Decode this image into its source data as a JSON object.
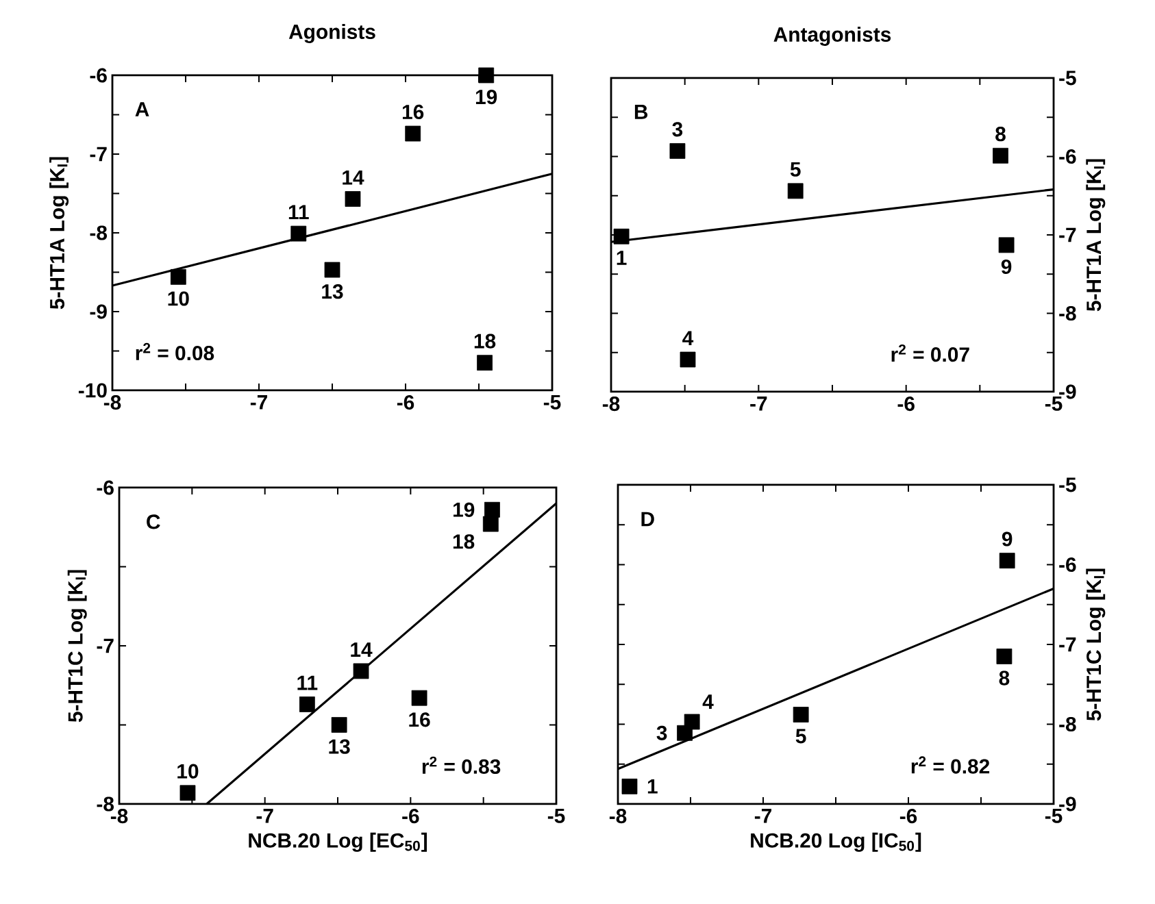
{
  "chart_data": [
    {
      "type": "scatter",
      "title": "Agonists",
      "ylabel": "5-HT1A Log [K$_{I}$]",
      "xlim": [
        -8,
        -5
      ],
      "ylim": [
        -10,
        -6
      ],
      "xticks": [
        -8,
        {
          "value": -7.5,
          "label": null
        },
        -7,
        {
          "value": -6.5,
          "label": null
        },
        -6,
        {
          "value": -5.5,
          "label": null
        },
        -5
      ],
      "yticks": [
        -10,
        {
          "value": -9.5,
          "label": null
        },
        -9,
        {
          "value": -8.5,
          "label": null
        },
        -8,
        {
          "value": -7.5,
          "label": null
        },
        -7,
        {
          "value": -6.5,
          "label": null
        },
        -6
      ],
      "series": [
        {
          "marker": "square",
          "color": "#000000",
          "x": [
            -7.55,
            -6.73,
            -6.5,
            -6.36,
            -5.95,
            -5.45,
            -5.46
          ],
          "values": [
            -8.56,
            -8.01,
            -8.47,
            -7.57,
            -6.74,
            -6.0,
            -9.65
          ]
        },
        {
          "type": "line",
          "marker": "none",
          "color": "#000000",
          "x": [
            -8,
            -5
          ],
          "values": [
            -8.67,
            -7.25
          ]
        }
      ],
      "annotations": [
        "A",
        "r$^{2}$ = 0.08",
        {
          "text": "10",
          "x": -7.55,
          "y": -8.56
        },
        {
          "text": "11",
          "x": -6.73,
          "y": -8.01
        },
        {
          "text": "13",
          "x": -6.5,
          "y": -8.47
        },
        {
          "text": "14",
          "x": -6.36,
          "y": -7.57
        },
        {
          "text": "16",
          "x": -5.95,
          "y": -6.74
        },
        {
          "text": "19",
          "x": -5.45,
          "y": -6.0
        },
        {
          "text": "18",
          "x": -5.46,
          "y": -9.65
        }
      ]
    },
    {
      "type": "scatter",
      "title": "Antagonists",
      "ylabel": "5-HT1A Log [K$_{I}$]",
      "xlim": [
        -8,
        -5
      ],
      "ylim": [
        -9,
        -5
      ],
      "xticks": [
        -8,
        {
          "value": -7.5,
          "label": null
        },
        -7,
        {
          "value": -6.5,
          "label": null
        },
        -6,
        {
          "value": -5.5,
          "label": null
        },
        -5
      ],
      "yticks": [
        -9,
        {
          "value": -8.5,
          "label": null
        },
        -8,
        {
          "value": -7.5,
          "label": null
        },
        -7,
        {
          "value": -6.5,
          "label": null
        },
        -6,
        {
          "value": -5.5,
          "label": null
        },
        -5
      ],
      "series": [
        {
          "marker": "square",
          "color": "#000000",
          "x": [
            -7.93,
            -7.55,
            -7.48,
            -6.75,
            -5.36,
            -5.32
          ],
          "values": [
            -7.02,
            -5.93,
            -8.59,
            -6.44,
            -5.99,
            -7.13
          ]
        },
        {
          "type": "line",
          "marker": "none",
          "color": "#000000",
          "x": [
            -8,
            -5
          ],
          "values": [
            -7.09,
            -6.42
          ]
        }
      ],
      "annotations": [
        "B",
        "r$^{2}$ = 0.07",
        {
          "text": "1",
          "x": -7.93,
          "y": -7.02
        },
        {
          "text": "3",
          "x": -7.55,
          "y": -5.93
        },
        {
          "text": "4",
          "x": -7.48,
          "y": -8.59
        },
        {
          "text": "5",
          "x": -6.75,
          "y": -6.44
        },
        {
          "text": "8",
          "x": -5.36,
          "y": -5.99
        },
        {
          "text": "9",
          "x": -5.32,
          "y": -7.13
        }
      ]
    },
    {
      "type": "scatter",
      "xlabel": "NCB.20 Log [EC$_{50}$]",
      "ylabel": "5-HT1C Log [K$_{I}$]",
      "xlim": [
        -8,
        -5
      ],
      "ylim": [
        -8,
        -6
      ],
      "xticks": [
        -8,
        {
          "value": -7.5,
          "label": null
        },
        -7,
        {
          "value": -6.5,
          "label": null
        },
        -6,
        {
          "value": -5.5,
          "label": null
        },
        -5
      ],
      "yticks": [
        -8,
        {
          "value": -7.5,
          "label": null
        },
        -7,
        {
          "value": -6.5,
          "label": null
        },
        -6
      ],
      "series": [
        {
          "marker": "square",
          "color": "#000000",
          "x": [
            -7.53,
            -6.71,
            -6.49,
            -6.34,
            -5.94,
            -5.44,
            -5.45
          ],
          "values": [
            -7.93,
            -7.37,
            -7.5,
            -7.16,
            -7.33,
            -6.14,
            -6.23
          ]
        },
        {
          "type": "line",
          "marker": "none",
          "color": "#000000",
          "x": [
            -7.4,
            -5
          ],
          "values": [
            -8,
            -6.1
          ]
        }
      ],
      "annotations": [
        "C",
        "r$^{2}$ = 0.83",
        {
          "text": "10",
          "x": -7.53,
          "y": -7.93
        },
        {
          "text": "11",
          "x": -6.71,
          "y": -7.37
        },
        {
          "text": "13",
          "x": -6.49,
          "y": -7.5
        },
        {
          "text": "14",
          "x": -6.34,
          "y": -7.16
        },
        {
          "text": "16",
          "x": -5.94,
          "y": -7.33
        },
        {
          "text": "19",
          "x": -5.44,
          "y": -6.14
        },
        {
          "text": "18",
          "x": -5.45,
          "y": -6.23
        }
      ]
    },
    {
      "type": "scatter",
      "xlabel": "NCB.20 Log [IC$_{50}$]",
      "ylabel": "5-HT1C Log [K$_{I}$]",
      "xlim": [
        -8,
        -5
      ],
      "ylim": [
        -9,
        -5
      ],
      "xticks": [
        -8,
        {
          "value": -7.5,
          "label": null
        },
        -7,
        {
          "value": -6.5,
          "label": null
        },
        -6,
        {
          "value": -5.5,
          "label": null
        },
        -5
      ],
      "yticks": [
        -9,
        {
          "value": -8.5,
          "label": null
        },
        -8,
        {
          "value": -7.5,
          "label": null
        },
        -7,
        {
          "value": -6.5,
          "label": null
        },
        -6,
        {
          "value": -5.5,
          "label": null
        },
        -5
      ],
      "series": [
        {
          "marker": "square",
          "color": "#000000",
          "x": [
            -7.92,
            -7.54,
            -7.49,
            -6.74,
            -5.34,
            -5.32
          ],
          "values": [
            -8.78,
            -8.11,
            -7.97,
            -7.88,
            -7.15,
            -5.95
          ]
        },
        {
          "type": "line",
          "marker": "none",
          "color": "#000000",
          "x": [
            -8,
            -5
          ],
          "values": [
            -8.56,
            -6.3
          ]
        }
      ],
      "annotations": [
        "D",
        "r$^{2}$ = 0.82",
        {
          "text": "1",
          "x": -7.92,
          "y": -8.78
        },
        {
          "text": "3",
          "x": -7.54,
          "y": -8.11
        },
        {
          "text": "4",
          "x": -7.49,
          "y": -7.97
        },
        {
          "text": "5",
          "x": -6.74,
          "y": -7.88
        },
        {
          "text": "8",
          "x": -5.34,
          "y": -7.15
        },
        {
          "text": "9",
          "x": -5.32,
          "y": -5.95
        }
      ]
    }
  ]
}
